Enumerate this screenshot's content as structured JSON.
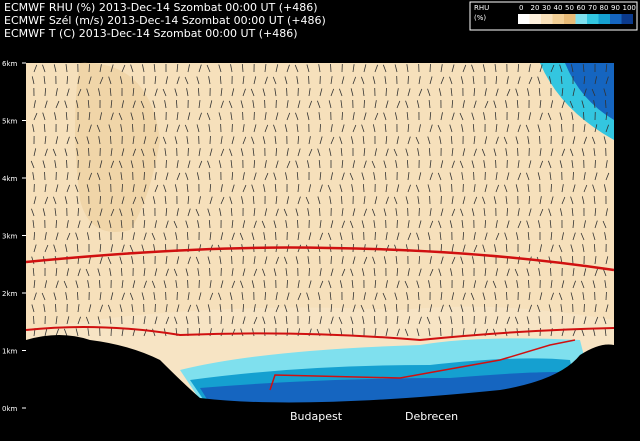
{
  "header": {
    "lines": [
      "ECMWF  RHU (%)  2013-Dec-14 Szombat 00:00 UT (+486)",
      "ECMWF  Szél (m/s)  2013-Dec-14 Szombat 00:00 UT (+486)",
      "ECMWF  T (C)  2013-Dec-14 Szombat 00:00 UT (+486)"
    ]
  },
  "colorbar": {
    "title": "RHU",
    "unit": "(%)",
    "ticks": [
      "0",
      "20",
      "30",
      "40",
      "50",
      "60",
      "70",
      "80",
      "90",
      "100"
    ]
  },
  "axis": {
    "y_labels": [
      "0km",
      "1km",
      "2km",
      "3km",
      "4km",
      "5km",
      "6km"
    ]
  },
  "places": [
    "Budapest",
    "Debrecen"
  ]
}
